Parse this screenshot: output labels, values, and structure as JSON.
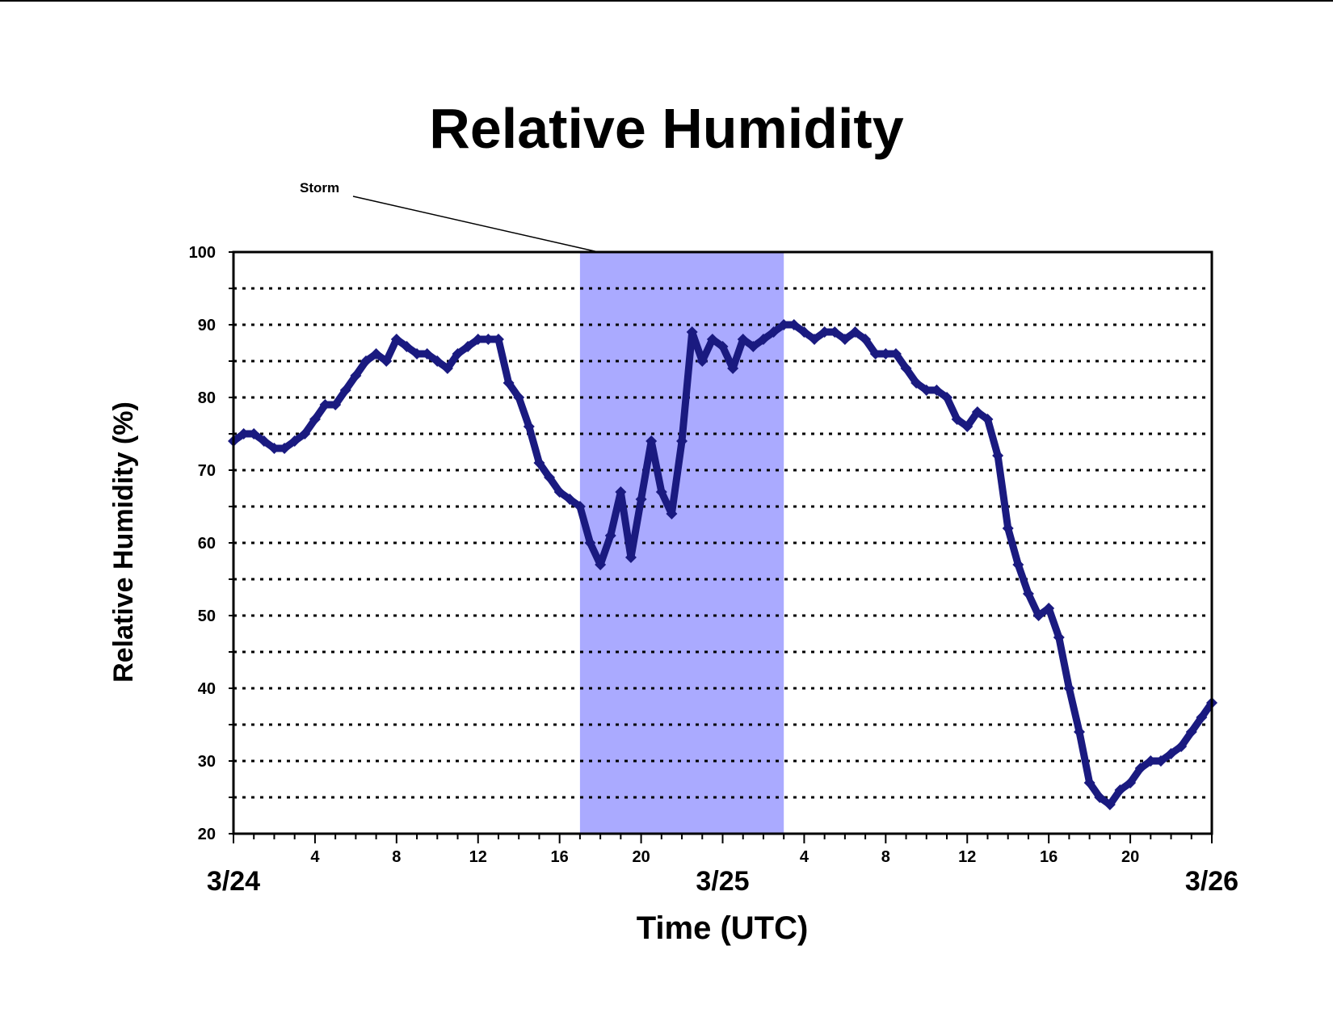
{
  "chart_data": {
    "type": "scatter",
    "title": "Relative Humidity",
    "xlabel": "Time (UTC)",
    "ylabel": "Relative Humidity (%)",
    "ylim": [
      20,
      100
    ],
    "xlim_hours": [
      0,
      48
    ],
    "y_ticks": [
      "20",
      "30",
      "40",
      "50",
      "60",
      "70",
      "80",
      "90",
      "100"
    ],
    "grid": "dotted horizontal every 5",
    "x_tick_labels": [
      {
        "hour": 4,
        "label": "4"
      },
      {
        "hour": 8,
        "label": "8"
      },
      {
        "hour": 12,
        "label": "12"
      },
      {
        "hour": 16,
        "label": "16"
      },
      {
        "hour": 20,
        "label": "20"
      },
      {
        "hour": 28,
        "label": "4"
      },
      {
        "hour": 32,
        "label": "8"
      },
      {
        "hour": 36,
        "label": "12"
      },
      {
        "hour": 40,
        "label": "16"
      },
      {
        "hour": 44,
        "label": "20"
      }
    ],
    "day_labels": [
      {
        "hour": 0,
        "label": "3/24"
      },
      {
        "hour": 24,
        "label": "3/25"
      },
      {
        "hour": 48,
        "label": "3/26"
      }
    ],
    "storm_band_hours": [
      17,
      27
    ],
    "annotation": {
      "text": "Storm",
      "hour": 17.9,
      "y": 100
    },
    "series_color": "#1a1a80",
    "band_color": "#aaaaff",
    "series": [
      {
        "x": [
          0,
          0.5,
          1,
          1.5,
          2,
          2.5,
          3,
          3.5,
          4,
          4.5,
          5,
          5.5,
          6,
          6.5,
          7,
          7.5,
          8,
          8.5,
          9,
          9.5,
          10,
          10.5,
          11,
          11.5,
          12,
          12.5,
          13,
          13.5,
          14,
          14.5,
          15,
          15.5,
          16,
          16.5,
          17,
          17.5,
          18,
          18.5,
          19,
          19.5,
          20,
          20.5,
          21,
          21.5,
          22,
          22.5,
          23,
          23.5,
          24,
          24.5,
          25,
          25.5,
          26,
          26.5,
          27,
          27.5,
          28,
          28.5,
          29,
          29.5,
          30,
          30.5,
          31,
          31.5,
          32,
          32.5,
          33,
          33.5,
          34,
          34.5,
          35,
          35.5,
          36,
          36.5,
          37,
          37.5,
          38,
          38.5,
          39,
          39.5,
          40,
          40.5,
          41,
          41.5,
          42,
          42.5,
          43,
          43.5,
          44,
          44.5,
          45,
          45.5,
          46,
          46.5,
          47,
          47.5,
          48
        ],
        "y": [
          74,
          75,
          75,
          74,
          73,
          73,
          74,
          75,
          77,
          79,
          79,
          81,
          83,
          85,
          86,
          85,
          88,
          87,
          86,
          86,
          85,
          84,
          86,
          87,
          88,
          88,
          88,
          82,
          80,
          76,
          71,
          69,
          67,
          66,
          65,
          60,
          57,
          61,
          67,
          58,
          66,
          74,
          67,
          64,
          74,
          89,
          85,
          88,
          87,
          84,
          88,
          87,
          88,
          89,
          90,
          90,
          89,
          88,
          89,
          89,
          88,
          89,
          88,
          86,
          86,
          86,
          84,
          82,
          81,
          81,
          80,
          77,
          76,
          78,
          77,
          72,
          62,
          57,
          53,
          50,
          51,
          47,
          40,
          34,
          27,
          25,
          24,
          26,
          27,
          29,
          30,
          30,
          31,
          32,
          34,
          36,
          38
        ]
      }
    ]
  }
}
